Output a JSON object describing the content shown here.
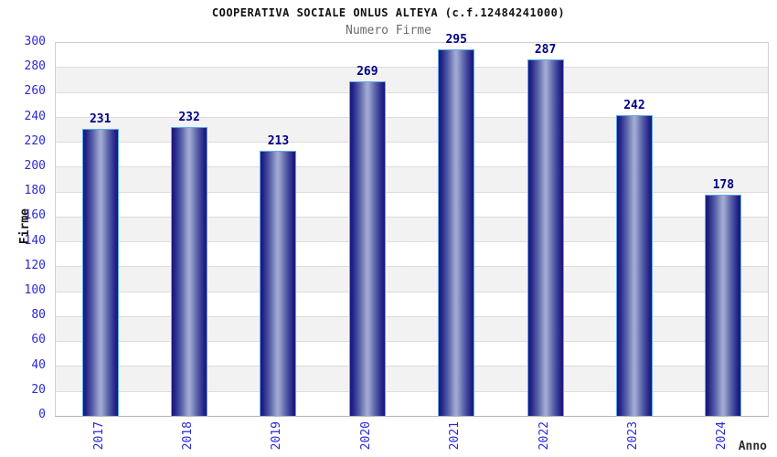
{
  "header": {
    "title": "COOPERATIVA SOCIALE ONLUS ALTEYA (c.f.12484241000)",
    "subtitle": "Numero Firme"
  },
  "chart_data": {
    "type": "bar",
    "title": "COOPERATIVA SOCIALE ONLUS ALTEYA (c.f.12484241000)",
    "subtitle": "Numero Firme",
    "xlabel": "Anno",
    "ylabel": "Firme",
    "categories": [
      "2017",
      "2018",
      "2019",
      "2020",
      "2021",
      "2022",
      "2023",
      "2024"
    ],
    "values": [
      231,
      232,
      213,
      269,
      295,
      287,
      242,
      178
    ],
    "ylim": [
      0,
      300
    ],
    "ytick_step": 20,
    "yticks": [
      0,
      20,
      40,
      60,
      80,
      100,
      120,
      140,
      160,
      180,
      200,
      220,
      240,
      260,
      280,
      300
    ],
    "grid": "horizontal-bands-alternating",
    "legend": "none",
    "bar_labels_shown": true,
    "colors": {
      "title_color": "#111111",
      "subtitle_color": "#6b6b6b",
      "tick_blue": "#2a2ad4",
      "value_navy": "#000085",
      "bar_edge": "#181874",
      "bar_mid": "#a4abd4",
      "bar_border": "#5ea9ef",
      "band_gray": "#f2f2f2",
      "grid_line": "#dcdcdc",
      "plot_border": "#d0d0d0"
    }
  }
}
